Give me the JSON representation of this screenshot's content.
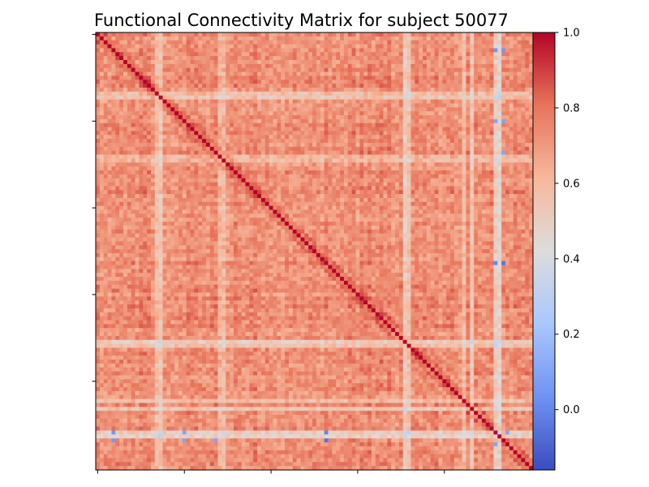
{
  "chart_data": {
    "type": "heatmap",
    "title": "Functional Connectivity Matrix for subject 50077",
    "colormap": "coolwarm",
    "colorbar": {
      "vmin": -0.16,
      "vmax": 1.0,
      "ticks": [
        0.0,
        0.2,
        0.4,
        0.6,
        0.8,
        1.0
      ],
      "tick_labels": [
        "0.0",
        "0.2",
        "0.4",
        "0.6",
        "0.8",
        "1.0"
      ],
      "colors": [
        "#3b4cc0",
        "#6f92f3",
        "#aac7fd",
        "#dddcdc",
        "#f7b89c",
        "#e7745b",
        "#b40426"
      ]
    },
    "matrix": {
      "size": 111,
      "diagonal_value": 1.0,
      "baseline_value": 0.7,
      "low_rows": [
        {
          "index": 15,
          "value": 0.45
        },
        {
          "index": 16,
          "value": 0.4
        },
        {
          "index": 31,
          "value": 0.5
        },
        {
          "index": 32,
          "value": 0.48
        },
        {
          "index": 78,
          "value": 0.35
        },
        {
          "index": 79,
          "value": 0.42
        },
        {
          "index": 93,
          "value": 0.45
        },
        {
          "index": 95,
          "value": 0.4
        },
        {
          "index": 101,
          "value": 0.35
        },
        {
          "index": 102,
          "value": 0.3
        }
      ],
      "dark_cells": [
        {
          "i": 101,
          "j": 4,
          "value": 0.05
        },
        {
          "i": 101,
          "j": 22,
          "value": 0.1
        },
        {
          "i": 101,
          "j": 58,
          "value": 0.05
        },
        {
          "i": 101,
          "j": 104,
          "value": 0.0
        },
        {
          "i": 103,
          "j": 4,
          "value": 0.15
        },
        {
          "i": 103,
          "j": 58,
          "value": 0.1
        },
        {
          "i": 4,
          "j": 103,
          "value": 0.05
        },
        {
          "i": 22,
          "j": 103,
          "value": 0.1
        },
        {
          "i": 58,
          "j": 103,
          "value": -0.05
        },
        {
          "i": 58,
          "j": 101,
          "value": 0.0
        },
        {
          "i": 4,
          "j": 101,
          "value": 0.05
        },
        {
          "i": 104,
          "j": 101,
          "value": 0.1
        },
        {
          "i": 30,
          "j": 103,
          "value": 0.1
        }
      ],
      "x_ticks": [
        0,
        22,
        44,
        66,
        88
      ],
      "y_ticks": [
        0,
        22,
        44,
        66,
        88
      ]
    }
  }
}
